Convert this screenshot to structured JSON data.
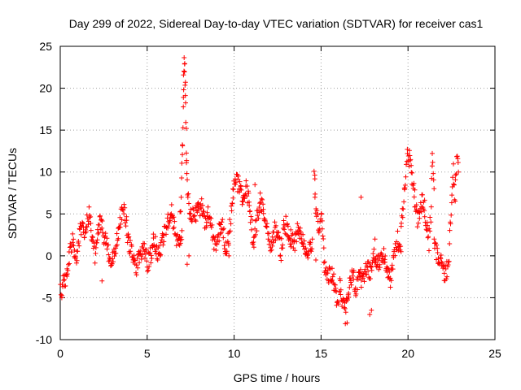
{
  "chart_data": {
    "type": "scatter",
    "title": "Day 299 of 2022, Sidereal Day-to-day VTEC variation (SDTVAR) for receiver cas1",
    "xlabel": "GPS time / hours",
    "ylabel": "SDTVAR / TECUs",
    "xlim": [
      0,
      25
    ],
    "ylim": [
      -10,
      25
    ],
    "xticks": [
      0,
      5,
      10,
      15,
      20,
      25
    ],
    "yticks": [
      -10,
      -5,
      0,
      5,
      10,
      15,
      20,
      25
    ],
    "grid": true,
    "marker": "plus",
    "color": "#ff0000",
    "series": [
      {
        "name": "SDTVAR",
        "segments": [
          {
            "x": [
              0.0,
              0.25,
              0.45,
              0.6,
              0.75,
              0.9,
              1.0,
              1.1,
              1.25,
              1.4,
              1.55,
              1.7,
              1.85,
              2.0,
              2.15,
              2.3,
              2.5,
              2.7,
              2.9,
              3.1,
              3.3,
              3.5,
              3.7,
              3.85,
              4.0,
              4.2,
              4.4,
              4.6,
              4.8,
              5.0,
              5.2,
              5.4,
              5.6,
              5.8,
              6.0,
              6.2,
              6.4,
              6.6,
              6.8,
              7.0
            ],
            "y": [
              -4.5,
              -3.0,
              -1.0,
              1.0,
              2.0,
              -1.0,
              0.5,
              2.5,
              3.5,
              1.5,
              4.5,
              5.0,
              2.0,
              0.0,
              3.0,
              4.0,
              2.5,
              1.0,
              -1.5,
              0.5,
              2.0,
              4.5,
              5.5,
              3.0,
              1.0,
              -0.5,
              -1.5,
              0.0,
              1.5,
              -1.0,
              0.0,
              2.0,
              0.5,
              1.0,
              2.5,
              4.0,
              5.5,
              3.0,
              1.5,
              3.0
            ]
          },
          {
            "x": [
              6.9,
              7.0,
              7.05,
              7.1,
              7.15,
              7.2,
              7.25,
              7.3,
              7.4,
              7.5
            ],
            "y": [
              4.5,
              10.0,
              15.0,
              22.5,
              23.0,
              19.0,
              13.0,
              8.0,
              6.0,
              5.0
            ]
          },
          {
            "x": [
              7.5,
              7.7,
              7.9,
              8.1,
              8.3,
              8.5,
              8.7,
              8.9,
              9.1,
              9.3,
              9.5,
              9.7,
              9.9,
              10.1,
              10.3,
              10.5,
              10.7,
              10.9,
              11.1,
              11.3,
              11.5,
              11.7,
              11.9,
              12.1,
              12.3,
              12.5,
              12.7,
              12.9,
              13.1,
              13.3,
              13.5,
              13.7,
              13.9,
              14.1,
              14.3,
              14.5
            ],
            "y": [
              5.0,
              4.5,
              5.5,
              6.0,
              4.0,
              5.0,
              3.5,
              1.0,
              2.5,
              4.0,
              0.5,
              2.0,
              7.0,
              9.0,
              8.5,
              6.5,
              8.0,
              6.0,
              1.5,
              4.0,
              7.0,
              5.0,
              3.0,
              1.0,
              3.0,
              2.5,
              0.5,
              4.0,
              3.0,
              2.0,
              1.5,
              3.5,
              2.0,
              1.0,
              0.5,
              2.0
            ]
          },
          {
            "x": [
              14.6,
              14.7,
              14.8,
              14.9,
              15.0,
              15.1,
              15.2,
              15.35,
              15.5,
              15.65,
              15.8,
              15.95,
              16.1,
              16.25,
              16.4,
              16.55,
              16.7,
              16.85,
              17.0,
              17.2,
              17.4,
              17.6,
              17.8,
              18.0,
              18.2,
              18.4,
              18.6,
              18.8,
              19.0,
              19.2,
              19.4,
              19.6
            ],
            "y": [
              10.5,
              6.0,
              4.0,
              3.0,
              5.0,
              3.0,
              -1.0,
              -2.0,
              -2.5,
              -2.0,
              -4.0,
              -5.5,
              -3.5,
              -6.0,
              -7.0,
              -5.0,
              -3.0,
              -2.0,
              -4.0,
              -2.5,
              -3.0,
              -1.5,
              -2.0,
              0.0,
              -0.5,
              -1.0,
              0.5,
              -2.0,
              -3.0,
              0.5,
              2.0,
              0.5
            ]
          },
          {
            "x": [
              19.6,
              19.7,
              19.8,
              19.9,
              20.0,
              20.1,
              20.2,
              20.3,
              20.4,
              20.5,
              20.6,
              20.7,
              20.8,
              20.9,
              21.0,
              21.1,
              21.2,
              21.3,
              21.4,
              21.5
            ],
            "y": [
              3.5,
              5.5,
              8.0,
              11.0,
              12.0,
              11.5,
              10.0,
              8.0,
              6.5,
              5.0,
              4.0,
              5.5,
              7.0,
              6.5,
              5.0,
              3.0,
              1.5,
              5.0,
              12.0,
              8.0
            ]
          },
          {
            "x": [
              21.5,
              21.7,
              21.9,
              22.1,
              22.3,
              22.4,
              22.5,
              22.6,
              22.7,
              22.8,
              22.9
            ],
            "y": [
              1.0,
              0.0,
              -1.0,
              -2.0,
              -1.5,
              2.0,
              6.0,
              10.0,
              7.0,
              12.0,
              10.0
            ]
          }
        ],
        "outliers": [
          [
            2.4,
            -3.0
          ],
          [
            7.4,
            0.0
          ],
          [
            7.3,
            -1.0
          ],
          [
            9.7,
            0.0
          ],
          [
            14.7,
            -0.5
          ],
          [
            16.5,
            -8.0
          ],
          [
            17.8,
            -7.0
          ],
          [
            17.9,
            -6.5
          ],
          [
            18.1,
            2.0
          ],
          [
            14.65,
            7.0
          ],
          [
            11.2,
            8.5
          ],
          [
            17.3,
            7.0
          ]
        ]
      }
    ]
  }
}
